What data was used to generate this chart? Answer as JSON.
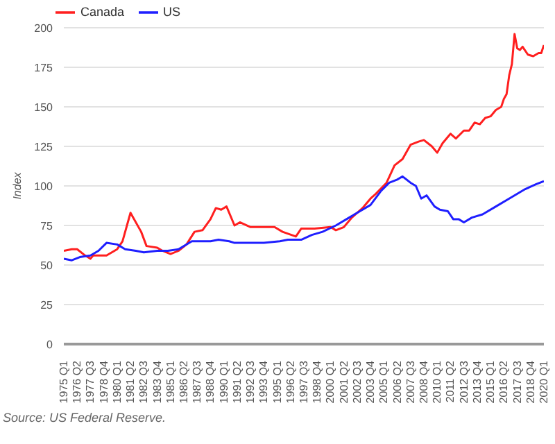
{
  "chart_data": {
    "type": "line",
    "ylabel": "Index",
    "annotations": [
      "Source: US Federal Reserve."
    ],
    "series": [
      {
        "name": "Canada",
        "color": "#ff1f1f",
        "x": [
          "1975-01",
          "1975-10",
          "1976-04",
          "1977-01",
          "1977-07",
          "1977-10",
          "1979-01",
          "1980-01",
          "1980-07",
          "1981-04",
          "1982-04",
          "1982-10",
          "1983-10",
          "1984-04",
          "1985-01",
          "1985-10",
          "1986-07",
          "1987-04",
          "1988-01",
          "1988-10",
          "1989-04",
          "1989-10",
          "1990-04",
          "1991-01",
          "1991-07",
          "1992-07",
          "1993-10",
          "1994-10",
          "1995-07",
          "1996-10",
          "1997-04",
          "1998-07",
          "2000-01",
          "2000-07",
          "2001-04",
          "2002-01",
          "2003-01",
          "2003-10",
          "2004-04",
          "2005-04",
          "2006-01",
          "2006-10",
          "2007-07",
          "2008-04",
          "2008-10",
          "2009-07",
          "2010-01",
          "2010-07",
          "2011-04",
          "2011-10",
          "2012-07",
          "2013-01",
          "2013-07",
          "2014-01",
          "2014-07",
          "2015-01",
          "2015-07",
          "2016-01",
          "2016-04",
          "2016-07",
          "2016-10",
          "2017-01",
          "2017-04",
          "2017-07",
          "2017-10",
          "2018-01",
          "2018-07",
          "2019-01",
          "2019-07",
          "2019-10",
          "2020-01"
        ],
        "values": [
          59,
          60,
          60,
          56,
          54,
          56,
          56,
          60,
          65,
          83,
          71,
          62,
          61,
          59,
          57,
          59,
          63,
          71,
          72,
          79,
          86,
          85,
          87,
          75,
          77,
          74,
          74,
          74,
          71,
          68,
          73,
          73,
          74,
          72,
          74,
          80,
          86,
          92,
          95,
          102,
          113,
          117,
          126,
          128,
          129,
          125,
          121,
          127,
          133,
          130,
          135,
          135,
          140,
          139,
          143,
          144,
          148,
          150,
          155,
          158,
          170,
          177,
          196,
          187,
          186,
          188,
          183,
          182,
          184,
          184,
          189
        ]
      },
      {
        "name": "US",
        "color": "#1f1fff",
        "x": [
          "1975-01",
          "1975-10",
          "1976-07",
          "1977-07",
          "1978-04",
          "1979-01",
          "1980-01",
          "1980-10",
          "1981-10",
          "1982-07",
          "1983-10",
          "1984-10",
          "1985-10",
          "1987-01",
          "1987-10",
          "1988-10",
          "1989-07",
          "1990-07",
          "1991-01",
          "1992-04",
          "1993-10",
          "1995-04",
          "1996-01",
          "1997-04",
          "1998-04",
          "1999-04",
          "2000-07",
          "2001-10",
          "2002-10",
          "2003-10",
          "2004-10",
          "2005-07",
          "2006-04",
          "2006-10",
          "2007-07",
          "2008-01",
          "2008-07",
          "2009-01",
          "2009-10",
          "2010-04",
          "2011-01",
          "2011-07",
          "2012-01",
          "2012-07",
          "2013-04",
          "2014-04",
          "2015-07",
          "2016-10",
          "2018-04",
          "2019-04",
          "2020-01"
        ],
        "values": [
          54,
          53,
          55,
          56,
          59,
          64,
          63,
          60,
          59,
          58,
          59,
          59,
          60,
          65,
          65,
          65,
          66,
          65,
          64,
          64,
          64,
          65,
          66,
          66,
          69,
          71,
          75,
          80,
          84,
          88,
          97,
          102,
          104,
          106,
          102,
          100,
          92,
          94,
          87,
          85,
          84,
          79,
          79,
          77,
          80,
          82,
          87,
          92,
          98,
          101,
          103
        ]
      }
    ],
    "xlim": [
      "1975-01",
      "2020-01"
    ],
    "xticks": [
      {
        "value": "1975-01",
        "label": "1975 Q1"
      },
      {
        "value": "1976-04",
        "label": "1976 Q2"
      },
      {
        "value": "1977-07",
        "label": "1977 Q3"
      },
      {
        "value": "1978-10",
        "label": "1978 Q4"
      },
      {
        "value": "1980-01",
        "label": "1980 Q1"
      },
      {
        "value": "1981-04",
        "label": "1981 Q2"
      },
      {
        "value": "1982-07",
        "label": "1982 Q3"
      },
      {
        "value": "1983-10",
        "label": "1983 Q4"
      },
      {
        "value": "1985-01",
        "label": "1985 Q1"
      },
      {
        "value": "1986-04",
        "label": "1986 Q2"
      },
      {
        "value": "1987-07",
        "label": "1987 Q3"
      },
      {
        "value": "1988-10",
        "label": "1988 Q4"
      },
      {
        "value": "1990-01",
        "label": "1990 Q1"
      },
      {
        "value": "1991-04",
        "label": "1991 Q2"
      },
      {
        "value": "1992-07",
        "label": "1992 Q3"
      },
      {
        "value": "1993-10",
        "label": "1993 Q4"
      },
      {
        "value": "1995-01",
        "label": "1995 Q1"
      },
      {
        "value": "1996-04",
        "label": "1996 Q2"
      },
      {
        "value": "1997-07",
        "label": "1997 Q3"
      },
      {
        "value": "1998-10",
        "label": "1998 Q4"
      },
      {
        "value": "2000-01",
        "label": "2000 Q1"
      },
      {
        "value": "2001-04",
        "label": "2001 Q2"
      },
      {
        "value": "2002-07",
        "label": "2002 Q3"
      },
      {
        "value": "2003-10",
        "label": "2003 Q4"
      },
      {
        "value": "2005-01",
        "label": "2005 Q1"
      },
      {
        "value": "2006-04",
        "label": "2006 Q2"
      },
      {
        "value": "2007-07",
        "label": "2007 Q3"
      },
      {
        "value": "2008-10",
        "label": "2008 Q4"
      },
      {
        "value": "2010-01",
        "label": "2010 Q1"
      },
      {
        "value": "2011-04",
        "label": "2011 Q2"
      },
      {
        "value": "2012-07",
        "label": "2012 Q3"
      },
      {
        "value": "2013-10",
        "label": "2013 Q4"
      },
      {
        "value": "2015-01",
        "label": "2015 Q1"
      },
      {
        "value": "2016-04",
        "label": "2016 Q2"
      },
      {
        "value": "2017-07",
        "label": "2017 Q3"
      },
      {
        "value": "2018-10",
        "label": "2018 Q4"
      },
      {
        "value": "2020-01",
        "label": "2020 Q1"
      }
    ],
    "ylim": [
      0,
      200
    ],
    "yticks": [
      0,
      25,
      50,
      75,
      100,
      125,
      150,
      175,
      200
    ],
    "grid": "y",
    "legend": "top left",
    "marker": "none",
    "line_style": "solid"
  }
}
